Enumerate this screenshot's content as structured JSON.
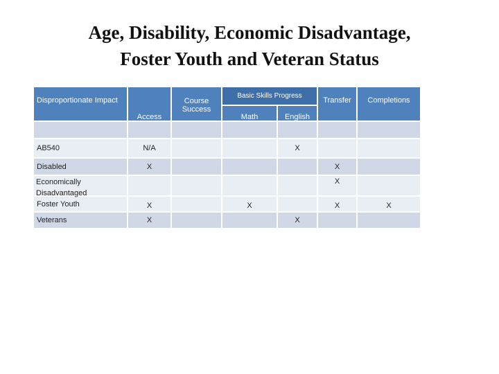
{
  "title_lines": [
    "Age, Disability, Economic Disadvantage,",
    "Foster Youth and Veteran Status"
  ],
  "table": {
    "row_header": "Disproportionate Impact",
    "group_header": "Basic Skills Progress",
    "columns": [
      "Access",
      "Course Success",
      "Math",
      "English",
      "Transfer",
      "Completions"
    ],
    "rows": [
      {
        "label": "AB540",
        "cells": [
          "N/A",
          null,
          null,
          "X",
          null,
          null
        ]
      },
      {
        "label": "Disabled",
        "cells": [
          "X",
          null,
          null,
          null,
          "X",
          null
        ]
      },
      {
        "label": "Economically Disadvantaged",
        "cells": [
          null,
          null,
          null,
          null,
          "X",
          null
        ]
      },
      {
        "label": "Foster Youth",
        "cells": [
          "X",
          null,
          "X",
          null,
          "X",
          "X"
        ]
      },
      {
        "label": "Veterans",
        "cells": [
          "X",
          null,
          null,
          "X",
          null,
          null
        ]
      }
    ]
  }
}
